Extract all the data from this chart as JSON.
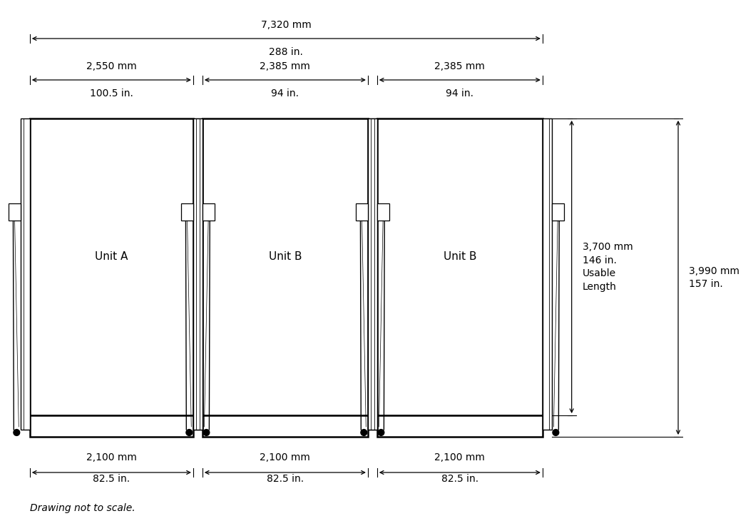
{
  "bg_color": "#ffffff",
  "line_color": "#000000",
  "text_color": "#000000",
  "unit_labels": [
    "Unit A",
    "Unit B",
    "Unit B"
  ],
  "dim_top_total_mm": "7,320 mm",
  "dim_top_total_in": "288 in.",
  "dim_top_sub_mm": [
    "2,550 mm",
    "2,385 mm",
    "2,385 mm"
  ],
  "dim_top_sub_in": [
    "100.5 in.",
    "94 in.",
    "94 in."
  ],
  "dim_bottom_mm": [
    "2,100 mm",
    "2,100 mm",
    "2,100 mm"
  ],
  "dim_bottom_in": [
    "82.5 in.",
    "82.5 in.",
    "82.5 in."
  ],
  "dim_right_usable_mm": "3,700 mm",
  "dim_right_usable_in": "146 in.",
  "dim_right_usable_label": "Usable\nLength",
  "dim_right_total_mm": "3,990 mm",
  "dim_right_total_in": "157 in.",
  "footnote": "Drawing not to scale.",
  "font_size_label": 11,
  "font_size_dim": 10,
  "font_size_footnote": 10
}
